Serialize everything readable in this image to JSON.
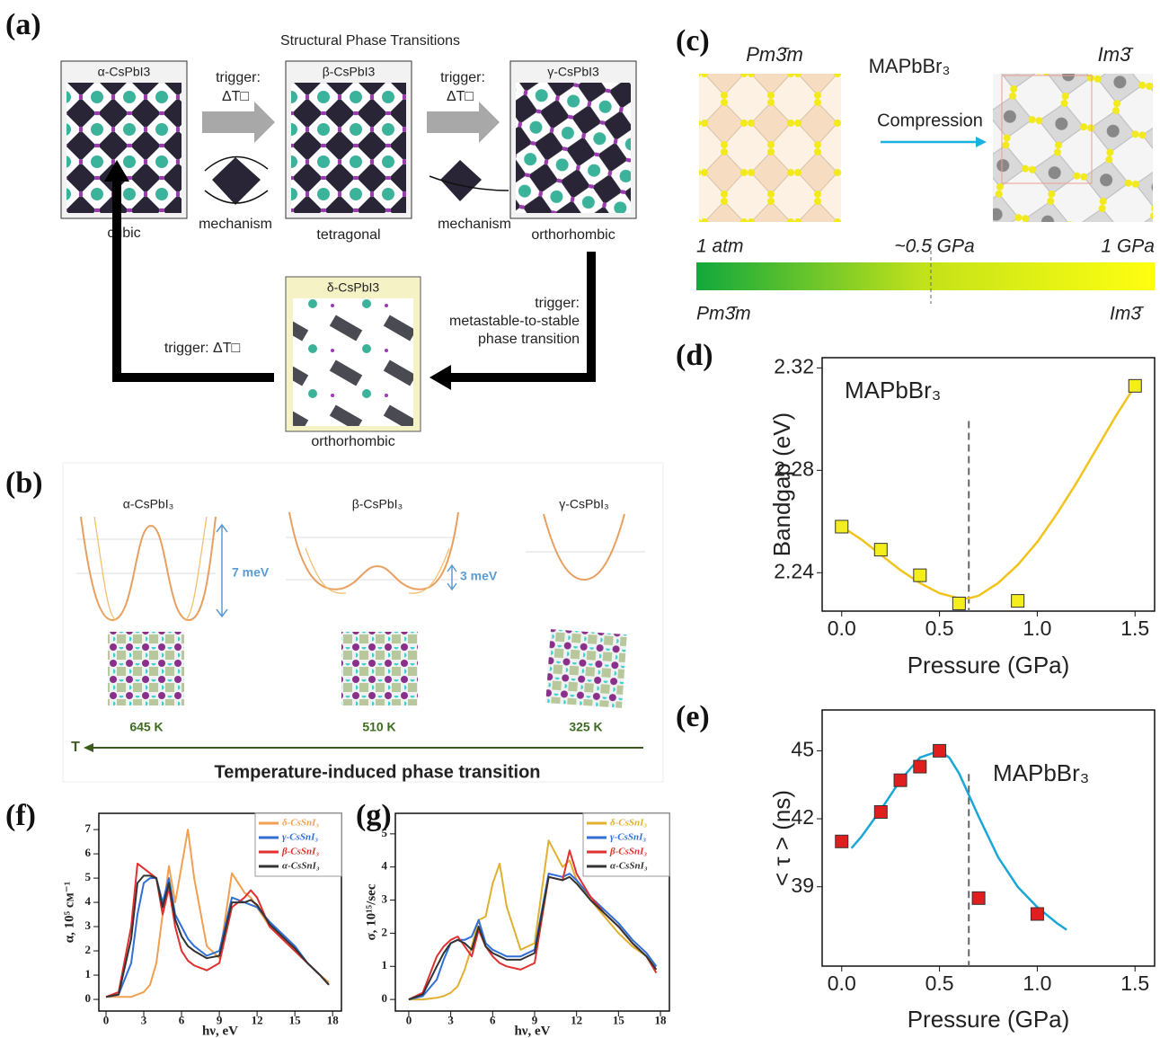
{
  "figure": {
    "a": {
      "label": "(a)",
      "title": "Structural Phase Transitions",
      "alpha": "α-CsPbI3",
      "beta": "β-CsPbI3",
      "gamma": "γ-CsPbI3",
      "delta": "δ-CsPbI3",
      "trigger_1": "trigger:",
      "dT_1": "ΔT□",
      "trigger_2": "trigger:",
      "dT_2": "ΔT□",
      "mechanism_1": "mechanism",
      "mechanism_2": "mechanism",
      "cubic": "cubic",
      "tetragonal": "tetragonal",
      "orthorhombic_1": "orthorhombic",
      "orthorhombic_2": "orthorhombic",
      "trigger_3": [
        "trigger:",
        "metastable-to-stable",
        "phase transition"
      ],
      "trigger_4": "trigger: ΔT□"
    },
    "b": {
      "label": "(b)",
      "alpha": "α-CsPbI₃",
      "beta": "β-CsPbI₃",
      "gamma": "γ-CsPbI₃",
      "barrier_alpha": "7 meV",
      "barrier_beta": "3 meV",
      "temp_alpha": "645 K",
      "temp_beta": "510 K",
      "temp_gamma": "325 K",
      "axis": "T",
      "title": "Temperature-induced phase transition"
    },
    "c": {
      "label": "(c)",
      "left_phase": "Pm3̄m",
      "compound": "MAPbBr₃",
      "right_phase": "Im3̄",
      "process": "Compression",
      "p_low": "1 atm",
      "p_mid": "~0.5 GPa",
      "p_high": "1 GPa",
      "bar_left": "Pm3̄m",
      "bar_right": "Im3̄"
    }
  },
  "chart_data": [
    {
      "type": "scatter",
      "panel_label": "(d)",
      "annotation": "MAPbBr₃",
      "xlabel": "Pressure (GPa)",
      "ylabel": "Bandgap (eV)",
      "x": [
        0,
        0.2,
        0.4,
        0.6,
        0.9,
        1.5
      ],
      "values": [
        2.258,
        2.249,
        2.239,
        2.228,
        2.229,
        2.313
      ],
      "color": "#f4ef1c",
      "fit": {
        "x": [
          0,
          0.1,
          0.2,
          0.3,
          0.4,
          0.5,
          0.6,
          0.65,
          0.7,
          0.8,
          0.9,
          1.0,
          1.1,
          1.2,
          1.3,
          1.4,
          1.5
        ],
        "values": [
          2.258,
          2.253,
          2.247,
          2.241,
          2.236,
          2.232,
          2.23,
          2.23,
          2.231,
          2.236,
          2.243,
          2.252,
          2.263,
          2.275,
          2.288,
          2.301,
          2.313
        ],
        "color": "#f2c31a"
      },
      "dashed_line_x": 0.65,
      "xlim": [
        -0.1,
        1.6
      ],
      "ylim": [
        2.225,
        2.324
      ],
      "xticks": [
        {
          "value": 0,
          "label": "0.0"
        },
        0.5,
        {
          "value": 1,
          "label": "1.0"
        },
        1.5
      ],
      "yticks": [
        2.24,
        2.28,
        2.32
      ]
    },
    {
      "type": "scatter",
      "panel_label": "(e)",
      "annotation": "MAPbBr₃",
      "xlabel": "Pressure (GPa)",
      "ylabel": "< τ > (ns)",
      "x": [
        0,
        0.2,
        0.3,
        0.4,
        0.5,
        0.7,
        1.0
      ],
      "values": [
        41.0,
        42.3,
        43.7,
        44.3,
        45.0,
        38.5,
        37.8
      ],
      "color": "#e01e1e",
      "fit": {
        "x": [
          0.05,
          0.1,
          0.2,
          0.3,
          0.4,
          0.5,
          0.55,
          0.6,
          0.7,
          0.8,
          0.9,
          1.0,
          1.1,
          1.15
        ],
        "values": [
          40.7,
          41.2,
          42.4,
          43.7,
          44.7,
          45.0,
          44.7,
          44.0,
          42.1,
          40.3,
          39.0,
          38.1,
          37.4,
          37.1
        ],
        "color": "#1aa7d6"
      },
      "dashed_line_x": 0.65,
      "xlim": [
        -0.1,
        1.6
      ],
      "ylim": [
        35.5,
        46.8
      ],
      "xticks": [
        {
          "value": 0,
          "label": "0.0"
        },
        0.5,
        {
          "value": 1,
          "label": "1.0"
        },
        1.5
      ],
      "yticks": [
        39,
        42,
        45
      ]
    },
    {
      "type": "line",
      "panel_label": "(f)",
      "xlabel": "hν, eV",
      "ylabel": "α, 10⁵ cм⁻¹",
      "legend": "upper right",
      "x": [
        0,
        1,
        2,
        2.5,
        3,
        3.5,
        4,
        4.5,
        5,
        5.5,
        6,
        6.5,
        7,
        8,
        9,
        10,
        11,
        11.5,
        12,
        13,
        14,
        15,
        16,
        17,
        17.7
      ],
      "series": [
        {
          "name": "δ-CsSnI₃",
          "color": "#f0a050",
          "values": [
            0.1,
            0.1,
            0.1,
            0.2,
            0.3,
            0.6,
            1.5,
            3.5,
            5.5,
            4.0,
            5.5,
            7.0,
            5.0,
            2.2,
            1.7,
            5.2,
            4.4,
            4.2,
            3.8,
            3.0,
            2.5,
            2.0,
            1.5,
            1.0,
            0.7
          ]
        },
        {
          "name": "γ-CsSnI₃",
          "color": "#2f6fd6",
          "values": [
            0.1,
            0.2,
            1.5,
            3.5,
            4.8,
            5.0,
            5.0,
            4.0,
            5.0,
            3.5,
            3.0,
            2.5,
            2.2,
            1.8,
            2.0,
            4.2,
            4.0,
            3.9,
            3.8,
            3.2,
            2.7,
            2.2,
            1.5,
            1.0,
            0.6
          ]
        },
        {
          "name": "β-CsSnI₃",
          "color": "#e03030",
          "values": [
            0.1,
            0.3,
            3.0,
            5.6,
            5.4,
            5.2,
            5.0,
            3.5,
            4.6,
            3.0,
            2.0,
            1.6,
            1.4,
            1.2,
            1.5,
            3.8,
            4.2,
            4.5,
            4.2,
            3.0,
            2.5,
            2.0,
            1.5,
            1.0,
            0.6
          ]
        },
        {
          "name": "α-CsSnI₃",
          "color": "#333333",
          "values": [
            0.1,
            0.2,
            2.5,
            4.8,
            5.1,
            5.1,
            5.0,
            3.8,
            4.8,
            3.3,
            2.6,
            2.2,
            2.0,
            1.7,
            1.8,
            4.0,
            4.0,
            4.1,
            3.9,
            3.1,
            2.6,
            2.1,
            1.5,
            1.0,
            0.6
          ]
        }
      ],
      "xlim": [
        -0.57,
        18.7
      ],
      "ylim": [
        -0.48,
        7.67
      ],
      "xticks": [
        0,
        3,
        6,
        9,
        12,
        15,
        18
      ],
      "yticks": [
        0,
        1,
        2,
        3,
        4,
        5,
        6,
        7
      ]
    },
    {
      "type": "line",
      "panel_label": "(g)",
      "xlabel": "hν, eV",
      "ylabel": "σ, 10¹⁵/sec",
      "legend": "upper right",
      "x": [
        0,
        1,
        2,
        2.5,
        3,
        3.5,
        4,
        4.5,
        5,
        5.5,
        6,
        6.5,
        7,
        8,
        9,
        10,
        11,
        11.5,
        12,
        13,
        14,
        15,
        16,
        17,
        17.7
      ],
      "series": [
        {
          "name": "δ-CsSnI₃",
          "color": "#e0b030",
          "values": [
            0,
            0,
            0.05,
            0.1,
            0.2,
            0.4,
            0.9,
            1.6,
            2.4,
            2.5,
            3.5,
            4.1,
            2.8,
            1.5,
            1.7,
            4.8,
            4.0,
            4.2,
            3.6,
            3.0,
            2.5,
            2.0,
            1.6,
            1.3,
            1.0
          ]
        },
        {
          "name": "γ-CsSnI₃",
          "color": "#2f6fd6",
          "values": [
            0,
            0.1,
            0.6,
            1.2,
            1.7,
            1.8,
            1.8,
            1.9,
            2.4,
            1.7,
            1.5,
            1.4,
            1.3,
            1.3,
            1.5,
            3.8,
            3.7,
            3.8,
            3.6,
            3.1,
            2.7,
            2.3,
            1.8,
            1.4,
            1.0
          ]
        },
        {
          "name": "β-CsSnI₃",
          "color": "#e03030",
          "values": [
            0,
            0.2,
            1.3,
            1.6,
            1.8,
            1.9,
            1.6,
            1.3,
            2.1,
            1.6,
            1.3,
            1.1,
            1.0,
            0.9,
            1.1,
            3.7,
            3.6,
            4.5,
            3.8,
            3.1,
            2.6,
            2.2,
            1.7,
            1.3,
            0.8
          ]
        },
        {
          "name": "α-CsSnI₃",
          "color": "#333333",
          "values": [
            0,
            0.15,
            1.0,
            1.4,
            1.7,
            1.8,
            1.7,
            1.5,
            2.2,
            1.6,
            1.4,
            1.3,
            1.2,
            1.2,
            1.4,
            3.7,
            3.6,
            3.7,
            3.5,
            3.0,
            2.6,
            2.2,
            1.7,
            1.3,
            0.9
          ]
        }
      ],
      "xlim": [
        -0.96,
        18.64
      ],
      "ylim": [
        -0.35,
        5.62
      ],
      "xticks": [
        0,
        3,
        6,
        9,
        12,
        15,
        18
      ],
      "yticks": [
        0,
        1,
        2,
        3,
        4,
        5
      ]
    }
  ]
}
